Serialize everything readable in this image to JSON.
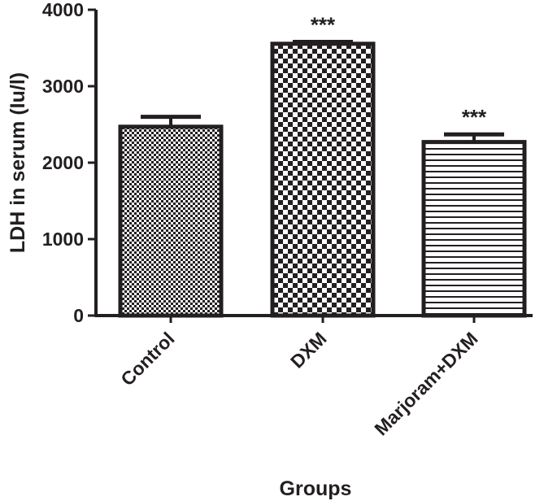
{
  "chart_data": {
    "type": "bar",
    "title": "",
    "xlabel": "Groups",
    "ylabel": "LDH in serum  (Iu/l)",
    "categories": [
      "Control",
      "DXM",
      "Marjoram+DXM"
    ],
    "values": [
      2470,
      3555,
      2270
    ],
    "errors": [
      130,
      25,
      100
    ],
    "annotations": [
      "",
      "***",
      "***"
    ],
    "patterns": [
      "fine-checker",
      "coarse-checker",
      "horizontal-lines"
    ],
    "ylim": [
      0,
      4000
    ],
    "yticks": [
      0,
      1000,
      2000,
      3000,
      4000
    ],
    "grid": false,
    "legend": "none",
    "colors": {
      "ink": "#231f20",
      "background": "#ffffff"
    }
  }
}
